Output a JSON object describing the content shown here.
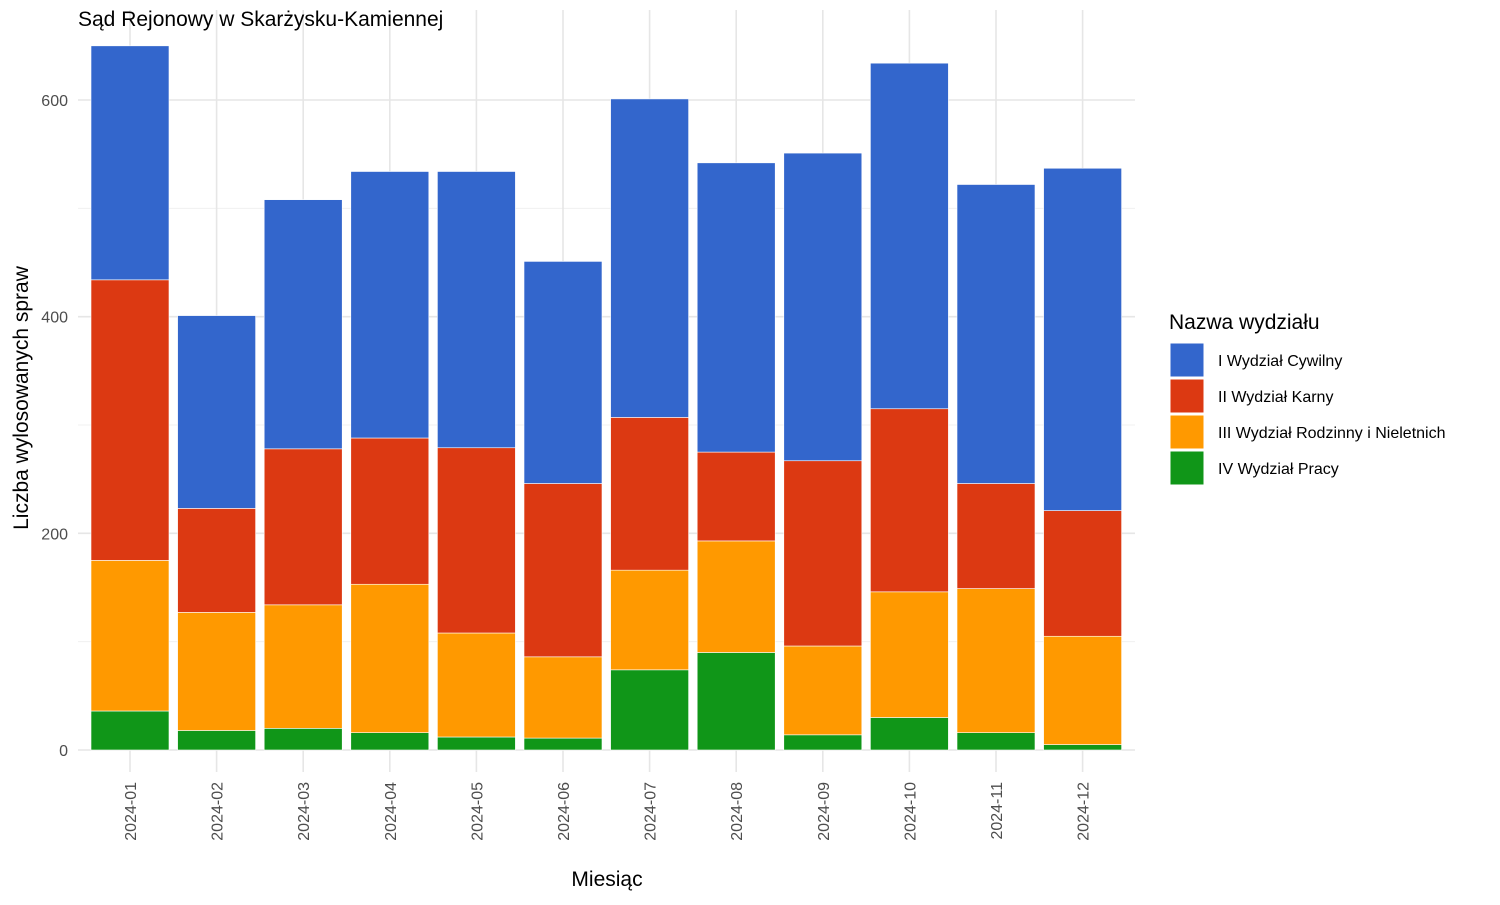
{
  "chart_data": {
    "type": "bar",
    "stacked": true,
    "title": "Sąd Rejonowy w Skarżysku-Kamiennej",
    "xlabel": "Miesiąc",
    "ylabel": "Liczba wylosowanych spraw",
    "ylim": [
      0,
      650
    ],
    "yticks": [
      0,
      200,
      400,
      600
    ],
    "grid": true,
    "legend_title": "Nazwa wydziału",
    "legend_position": "right",
    "categories": [
      "2024-01",
      "2024-02",
      "2024-03",
      "2024-04",
      "2024-05",
      "2024-06",
      "2024-07",
      "2024-08",
      "2024-09",
      "2024-10",
      "2024-11",
      "2024-12"
    ],
    "series": [
      {
        "name": "I Wydział Cywilny",
        "color": "#3366CC",
        "values": [
          216,
          178,
          230,
          246,
          255,
          205,
          294,
          267,
          284,
          319,
          276,
          316
        ]
      },
      {
        "name": "II Wydział Karny",
        "color": "#DC3912",
        "values": [
          259,
          96,
          144,
          135,
          171,
          160,
          141,
          82,
          171,
          169,
          97,
          116
        ]
      },
      {
        "name": "III Wydział Rodzinny i Nieletnich",
        "color": "#FF9900",
        "values": [
          139,
          109,
          114,
          137,
          96,
          75,
          92,
          103,
          82,
          116,
          133,
          100
        ]
      },
      {
        "name": "IV Wydział Pracy",
        "color": "#109618",
        "values": [
          36,
          18,
          20,
          16,
          12,
          11,
          74,
          90,
          14,
          30,
          16,
          5
        ]
      }
    ]
  }
}
